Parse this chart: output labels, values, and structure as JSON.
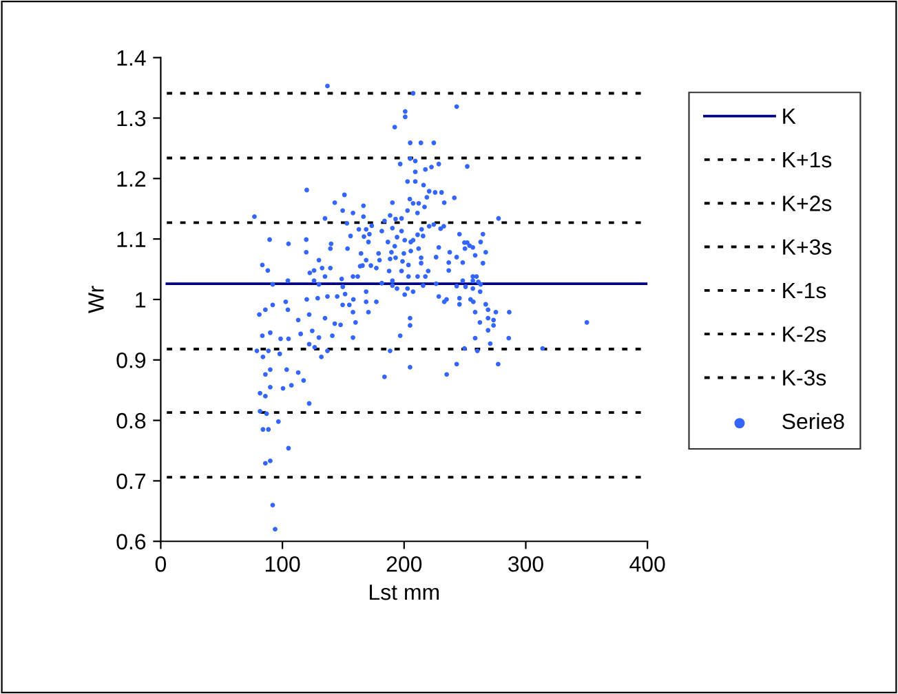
{
  "chart_data": {
    "type": "scatter",
    "xlabel": "Lst mm",
    "ylabel": "Wr",
    "xlim": [
      0,
      400
    ],
    "xticks": [
      0,
      100,
      200,
      300,
      400
    ],
    "ylim": [
      0.6,
      1.4
    ],
    "yticks": [
      0.6,
      0.7,
      0.8,
      0.9,
      1,
      1.1,
      1.2,
      1.3,
      1.4
    ],
    "legend": "right",
    "grid": false,
    "series": [
      {
        "name": "K",
        "type": "line",
        "color": "#000080",
        "line_style": "solid",
        "marker": "none",
        "x": [
          5,
          400
        ],
        "values": [
          1.026,
          1.026
        ]
      },
      {
        "name": "K+1s",
        "type": "line",
        "color": "#000000",
        "line_style": "dashed",
        "marker": "none",
        "x": [
          5,
          400
        ],
        "values": [
          1.127,
          1.127
        ]
      },
      {
        "name": "K+2s",
        "type": "line",
        "color": "#000000",
        "line_style": "dashed",
        "marker": "none",
        "x": [
          5,
          400
        ],
        "values": [
          1.234,
          1.234
        ]
      },
      {
        "name": "K+3s",
        "type": "line",
        "color": "#000000",
        "line_style": "dashed",
        "marker": "none",
        "x": [
          5,
          400
        ],
        "values": [
          1.341,
          1.341
        ]
      },
      {
        "name": "K-1s",
        "type": "line",
        "color": "#000000",
        "line_style": "dashed",
        "marker": "none",
        "x": [
          5,
          400
        ],
        "values": [
          0.918,
          0.918
        ]
      },
      {
        "name": "K-2s",
        "type": "line",
        "color": "#000000",
        "line_style": "dashed",
        "marker": "none",
        "x": [
          5,
          400
        ],
        "values": [
          0.813,
          0.813
        ]
      },
      {
        "name": "K-3s",
        "type": "line",
        "color": "#000000",
        "line_style": "dashed",
        "marker": "none",
        "x": [
          5,
          400
        ],
        "values": [
          0.706,
          0.706
        ]
      },
      {
        "name": "Serie8",
        "color": "#3366ff",
        "marker": "circle",
        "x": [
          77,
          120,
          137,
          89.5,
          83.5,
          88,
          92,
          105,
          104.5,
          81,
          86,
          92,
          102.7,
          104.5,
          83.5,
          90,
          98.5,
          105,
          79,
          88.5,
          84,
          97.8,
          90,
          86,
          90,
          100.5,
          107.4,
          103.5,
          113,
          117.4,
          81.6,
          86,
          81.6,
          87,
          84,
          88.5,
          96.7,
          86,
          90,
          105,
          92,
          94,
          119.6,
          119.6,
          122.5,
          126,
          130,
          132.6,
          139.4,
          126,
          130,
          135,
          120,
          129,
          137,
          145,
          151.5,
          122,
          113,
          135,
          143,
          147.8,
          124.5,
          115,
          130,
          141,
          122,
          126.5,
          137,
          132,
          122,
          135,
          143,
          151,
          149.5,
          153,
          158,
          140,
          153.5,
          156,
          139.4,
          148.7,
          158,
          149.5,
          155,
          158,
          158,
          207.4,
          243.2,
          200.9,
          200.9,
          192.3,
          205,
          213.8,
          224.4,
          196.8,
          205,
          209.2,
          209.2,
          217.5,
          222.5,
          228.5,
          251.9,
          202.8,
          209.2,
          216,
          220.6,
          225.5,
          230.8,
          218.7,
          241.3,
          204.7,
          207.4,
          212,
          216.8,
          190.4,
          202.8,
          211,
          233,
          224.4,
          230,
          232.6,
          183.9,
          188.5,
          193,
          197.9,
          166.6,
          166.6,
          162.8,
          168.8,
          171.5,
          173.4,
          167,
          170.7,
          181.7,
          186.7,
          190.4,
          194.2,
          197.9,
          200.5,
          205.5,
          207.4,
          214.4,
          215.6,
          220.6,
          211.1,
          211.9,
          205.5,
          199.8,
          192.3,
          189.6,
          179,
          164.6,
          168.8,
          165.8,
          163.9,
          177.2,
          172.7,
          179.8,
          188.5,
          193,
          198.7,
          203.6,
          214,
          214,
          219.8,
          187.7,
          197.9,
          203.6,
          211.1,
          217.5,
          190.4,
          190.4,
          181.7,
          194.2,
          200.5,
          207.4,
          202.8,
          215.6,
          226.3,
          161.9,
          149.6,
          158.3,
          168.8,
          168.8,
          177.2,
          170.7,
          160.1,
          188.5,
          196.8,
          204.9,
          204.9,
          204.9,
          183.9,
          226.3,
          228.5,
          237.5,
          236.7,
          236.7,
          243.2,
          248.2,
          249.6,
          251.9,
          253.8,
          256.5,
          250,
          245.5,
          262.9,
          264.8,
          258.4,
          267.1,
          264.8,
          256.5,
          259.5,
          261,
          262.9,
          256.5,
          248.2,
          250.5,
          243.2,
          256.5,
          262.5,
          254.6,
          256.9,
          245.5,
          245.5,
          234.9,
          233,
          228.5,
          267.1,
          269,
          275.4,
          286.4,
          258.4,
          273.5,
          269,
          262.3,
          273.5,
          269,
          258.4,
          286,
          270.8,
          249.6,
          260.2,
          243.2,
          235,
          277.3,
          277.6,
          313.8,
          350.2
        ],
        "values": [
          1.137,
          1.181,
          1.353,
          1.099,
          1.057,
          1.048,
          1.025,
          1.092,
          1.031,
          0.975,
          0.983,
          0.991,
          0.996,
          0.983,
          0.94,
          0.945,
          0.935,
          0.935,
          0.915,
          0.915,
          0.905,
          0.91,
          0.884,
          0.876,
          0.855,
          0.853,
          0.858,
          0.884,
          0.879,
          0.866,
          0.845,
          0.84,
          0.815,
          0.811,
          0.785,
          0.785,
          0.798,
          0.729,
          0.733,
          0.754,
          0.66,
          0.62,
          1.099,
          1.078,
          1.044,
          1.048,
          1.065,
          1.052,
          1.052,
          1.031,
          1.025,
          1.038,
          1.0,
          1.002,
          1.005,
          1.005,
          1.009,
          0.975,
          0.966,
          0.969,
          0.96,
          0.958,
          0.948,
          0.943,
          0.937,
          0.94,
          0.926,
          0.921,
          0.915,
          0.905,
          0.828,
          1.134,
          1.16,
          1.173,
          1.147,
          1.126,
          1.143,
          1.092,
          1.084,
          1.105,
          1.084,
          1.034,
          1.038,
          0.991,
          0.991,
          0.979,
          0.937,
          1.341,
          1.319,
          1.311,
          1.302,
          1.285,
          1.259,
          1.259,
          1.259,
          1.224,
          1.233,
          1.229,
          1.211,
          1.215,
          1.219,
          1.224,
          1.22,
          1.195,
          1.195,
          1.189,
          1.179,
          1.177,
          1.177,
          1.169,
          1.168,
          1.166,
          1.159,
          1.159,
          1.153,
          1.16,
          1.147,
          1.143,
          1.16,
          1.124,
          1.117,
          1.121,
          1.13,
          1.139,
          1.133,
          1.134,
          1.155,
          1.137,
          1.116,
          1.116,
          1.108,
          1.122,
          1.104,
          1.095,
          1.113,
          1.095,
          1.118,
          1.103,
          1.113,
          1.098,
          1.095,
          1.098,
          1.116,
          1.105,
          1.121,
          1.107,
          1.084,
          1.08,
          1.076,
          1.088,
          1.078,
          1.076,
          1.076,
          1.065,
          1.056,
          1.055,
          1.052,
          1.056,
          1.065,
          1.067,
          1.069,
          1.063,
          1.057,
          1.069,
          1.06,
          1.047,
          1.047,
          1.047,
          1.038,
          1.038,
          1.038,
          1.031,
          1.023,
          1.027,
          1.018,
          1.008,
          1.013,
          1.018,
          1.023,
          1.026,
          1.038,
          1.021,
          1.0,
          1.013,
          0.996,
          0.996,
          0.979,
          0.962,
          0.915,
          0.94,
          0.969,
          0.957,
          0.888,
          0.872,
          1.07,
          1.086,
          1.078,
          1.061,
          1.048,
          1.07,
          1.061,
          1.094,
          1.094,
          1.089,
          1.086,
          1.084,
          1.108,
          1.095,
          1.108,
          1.073,
          1.078,
          1.06,
          1.038,
          1.038,
          1.029,
          1.025,
          1.031,
          1.031,
          1.021,
          1.022,
          1.018,
          1.013,
          1.0,
          0.996,
          1.002,
          0.992,
          1.0,
          0.996,
          1.005,
          0.992,
          0.983,
          0.979,
          0.979,
          0.979,
          0.966,
          0.969,
          0.962,
          0.957,
          0.949,
          0.936,
          0.936,
          0.927,
          0.919,
          0.915,
          0.893,
          0.876,
          0.893,
          1.134,
          0.919,
          0.962
        ]
      }
    ]
  }
}
